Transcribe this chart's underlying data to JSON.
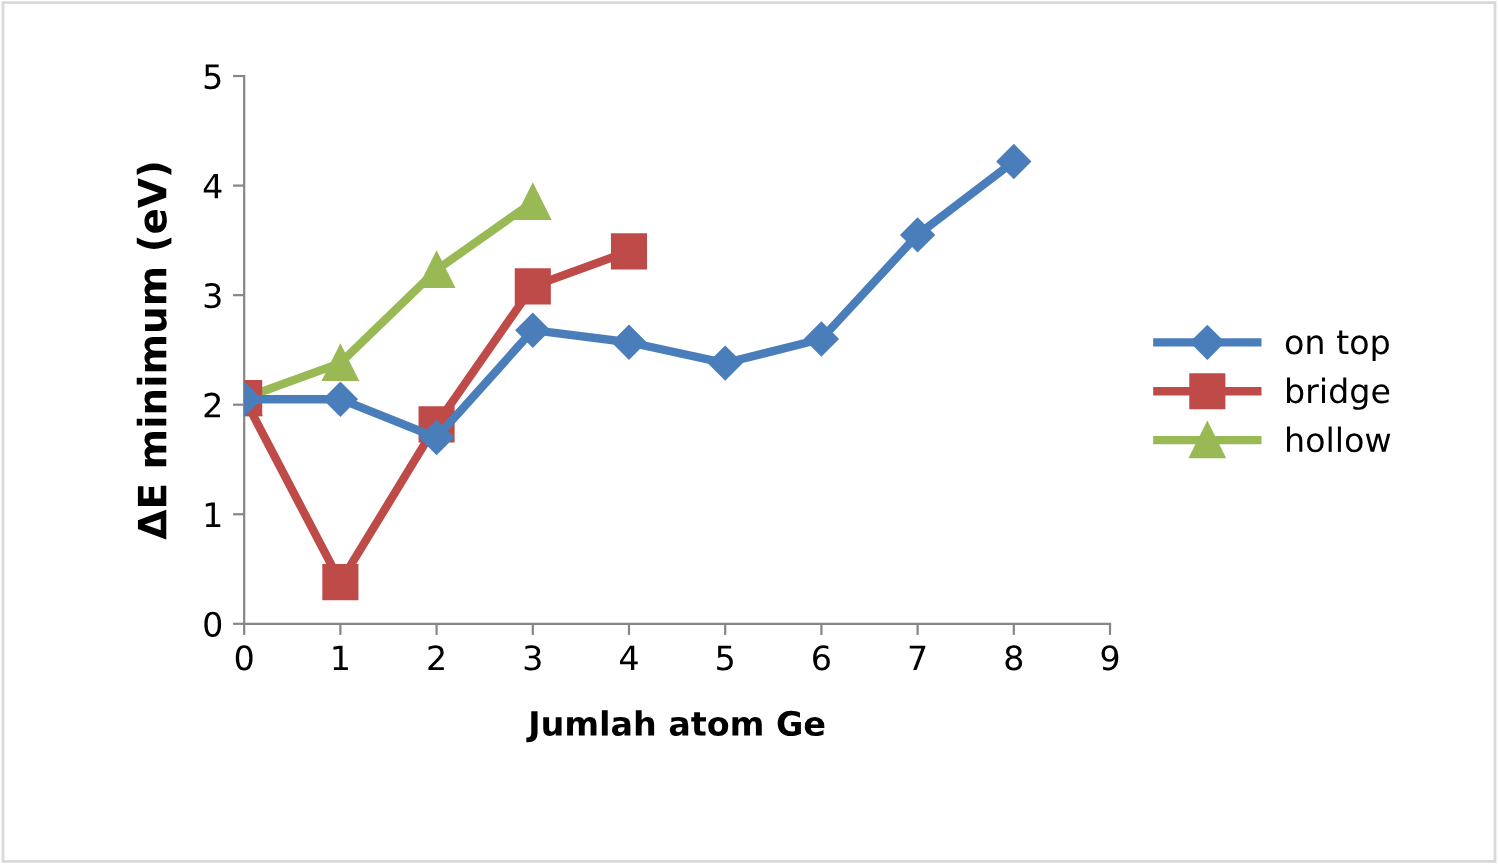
{
  "chart_data": {
    "type": "line",
    "xlabel": "Jumlah atom Ge",
    "ylabel": "ΔE minimum (eV)",
    "xlim": [
      0,
      9
    ],
    "xticks": [
      0,
      1,
      2,
      3,
      4,
      5,
      6,
      7,
      8,
      9
    ],
    "ylim": [
      0,
      5
    ],
    "yticks": [
      0,
      1,
      2,
      3,
      4,
      5
    ],
    "grid": false,
    "legend": "right",
    "series": [
      {
        "name": "on top",
        "color": "#4a7ebb",
        "marker": "diamond",
        "x": [
          0,
          1,
          2,
          3,
          4,
          5,
          6,
          7,
          8
        ],
        "values": [
          2.05,
          2.05,
          1.7,
          2.68,
          2.57,
          2.38,
          2.6,
          3.55,
          4.22
        ]
      },
      {
        "name": "bridge",
        "color": "#be4b48",
        "marker": "square",
        "x": [
          0,
          1,
          2,
          3,
          4
        ],
        "values": [
          2.06,
          0.38,
          1.82,
          3.08,
          3.4
        ]
      },
      {
        "name": "hollow",
        "color": "#98b954",
        "marker": "triangle",
        "x": [
          0,
          1,
          2,
          3
        ],
        "values": [
          2.06,
          2.38,
          3.23,
          3.85
        ]
      }
    ]
  }
}
